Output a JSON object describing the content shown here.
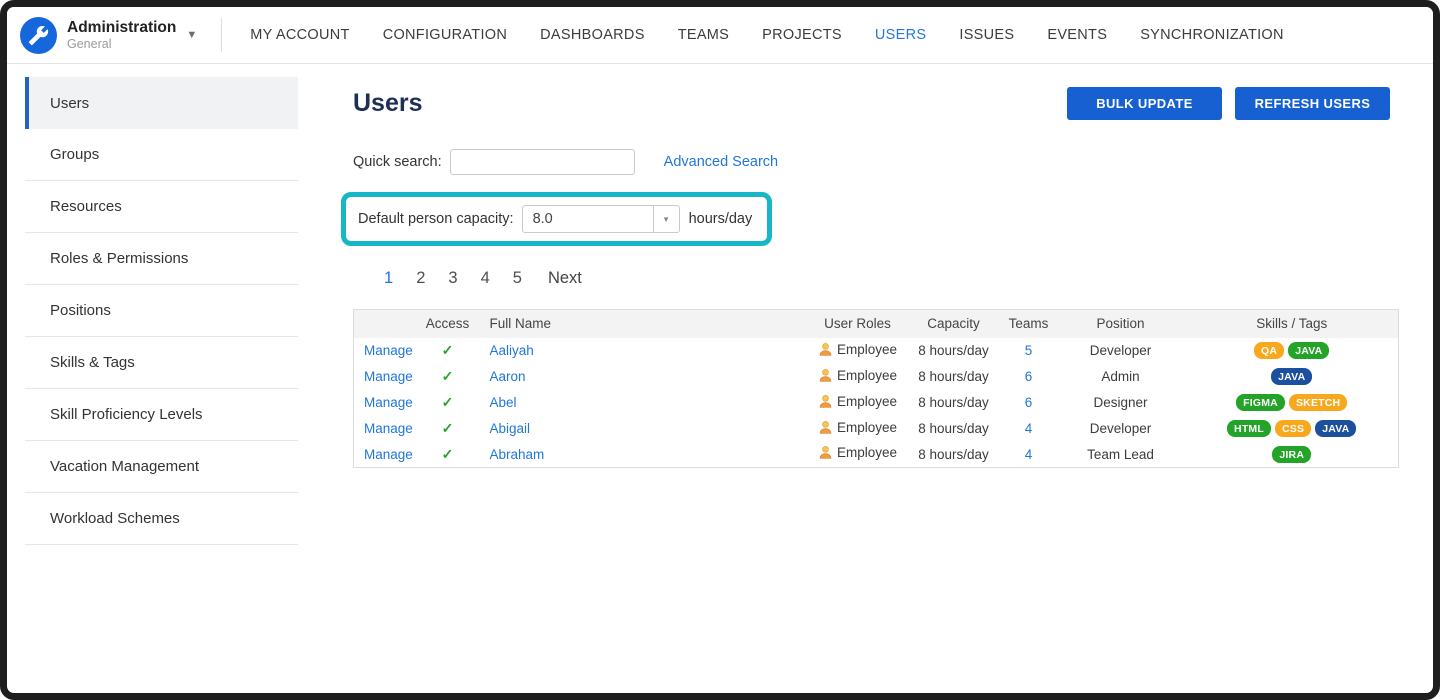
{
  "app": {
    "title": "Administration",
    "subtitle": "General"
  },
  "top_nav": {
    "items": [
      {
        "label": "MY ACCOUNT",
        "active": false
      },
      {
        "label": "CONFIGURATION",
        "active": false
      },
      {
        "label": "DASHBOARDS",
        "active": false
      },
      {
        "label": "TEAMS",
        "active": false
      },
      {
        "label": "PROJECTS",
        "active": false
      },
      {
        "label": "USERS",
        "active": true
      },
      {
        "label": "ISSUES",
        "active": false
      },
      {
        "label": "EVENTS",
        "active": false
      },
      {
        "label": "SYNCHRONIZATION",
        "active": false
      }
    ]
  },
  "sidebar": {
    "items": [
      {
        "label": "Users",
        "active": true
      },
      {
        "label": "Groups",
        "active": false
      },
      {
        "label": "Resources",
        "active": false
      },
      {
        "label": "Roles & Permissions",
        "active": false
      },
      {
        "label": "Positions",
        "active": false
      },
      {
        "label": "Skills & Tags",
        "active": false
      },
      {
        "label": "Skill Proficiency Levels",
        "active": false
      },
      {
        "label": "Vacation Management",
        "active": false
      },
      {
        "label": "Workload Schemes",
        "active": false
      }
    ]
  },
  "main": {
    "page_title": "Users",
    "buttons": {
      "bulk_update": "BULK UPDATE",
      "refresh_users": "REFRESH USERS"
    },
    "quick_search": {
      "label": "Quick search:",
      "value": ""
    },
    "advanced_search_label": "Advanced Search",
    "capacity": {
      "label": "Default person capacity:",
      "value": "8.0",
      "unit": "hours/day",
      "highlight_color": "#17b7c8"
    },
    "pagination": {
      "pages": [
        "1",
        "2",
        "3",
        "4",
        "5"
      ],
      "current": "1",
      "next_label": "Next"
    },
    "table": {
      "manage_label": "Manage",
      "access_check": "✓",
      "columns": [
        {
          "key": "manage",
          "label": ""
        },
        {
          "key": "access",
          "label": "Access"
        },
        {
          "key": "name",
          "label": "Full Name"
        },
        {
          "key": "roles",
          "label": "User Roles"
        },
        {
          "key": "capacity",
          "label": "Capacity"
        },
        {
          "key": "teams",
          "label": "Teams"
        },
        {
          "key": "position",
          "label": "Position"
        },
        {
          "key": "skills",
          "label": "Skills / Tags"
        }
      ],
      "rows": [
        {
          "full_name": "Aaliyah",
          "role": "Employee",
          "capacity": "8 hours/day",
          "teams": "5",
          "position": "Developer",
          "tags": [
            {
              "label": "QA",
              "color": "#f8a81d"
            },
            {
              "label": "JAVA",
              "color": "#23a327"
            }
          ]
        },
        {
          "full_name": "Aaron",
          "role": "Employee",
          "capacity": "8 hours/day",
          "teams": "6",
          "position": "Admin",
          "tags": [
            {
              "label": "JAVA",
              "color": "#1c4f9e"
            }
          ]
        },
        {
          "full_name": "Abel",
          "role": "Employee",
          "capacity": "8 hours/day",
          "teams": "6",
          "position": "Designer",
          "tags": [
            {
              "label": "FIGMA",
              "color": "#23a327"
            },
            {
              "label": "SKETCH",
              "color": "#f8a81d"
            }
          ]
        },
        {
          "full_name": "Abigail",
          "role": "Employee",
          "capacity": "8 hours/day",
          "teams": "4",
          "position": "Developer",
          "tags": [
            {
              "label": "HTML",
              "color": "#23a327"
            },
            {
              "label": "CSS",
              "color": "#f8a81d"
            },
            {
              "label": "JAVA",
              "color": "#1c4f9e"
            }
          ]
        },
        {
          "full_name": "Abraham",
          "role": "Employee",
          "capacity": "8 hours/day",
          "teams": "4",
          "position": "Team Lead",
          "tags": [
            {
              "label": "JIRA",
              "color": "#23a327"
            }
          ]
        }
      ]
    }
  },
  "colors": {
    "accent_blue": "#2176d9",
    "button_blue": "#1660d2",
    "heading_navy": "#1e2f55",
    "highlight_teal": "#17b7c8",
    "check_green": "#29a329",
    "badge_orange": "#f8a81d",
    "badge_green": "#23a327",
    "badge_navy": "#1c4f9e",
    "logo_blue": "#1767dc"
  }
}
